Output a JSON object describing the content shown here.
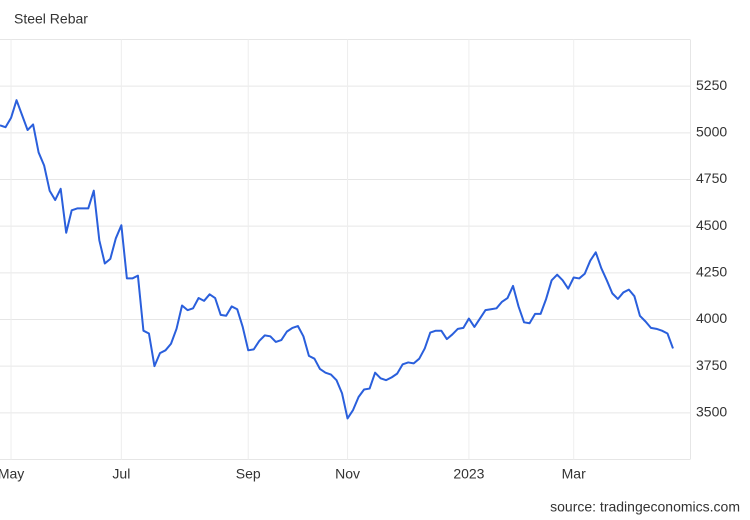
{
  "chart_data": {
    "type": "line",
    "title": "Steel Rebar",
    "source": "source: tradingeconomics.com",
    "categories": [
      null,
      null,
      "May",
      null,
      null,
      null,
      null,
      null,
      null,
      null,
      null,
      null,
      null,
      null,
      null,
      null,
      null,
      null,
      null,
      null,
      null,
      null,
      "Jul",
      null,
      null,
      null,
      null,
      null,
      null,
      null,
      null,
      null,
      null,
      null,
      null,
      null,
      null,
      null,
      null,
      null,
      null,
      null,
      null,
      null,
      null,
      "Sep",
      null,
      null,
      null,
      null,
      null,
      null,
      null,
      null,
      null,
      null,
      null,
      null,
      null,
      null,
      null,
      null,
      null,
      "Nov",
      null,
      null,
      null,
      null,
      null,
      null,
      null,
      null,
      null,
      null,
      null,
      null,
      null,
      null,
      null,
      null,
      null,
      null,
      null,
      null,
      null,
      "2023",
      null,
      null,
      null,
      null,
      null,
      null,
      null,
      null,
      null,
      null,
      null,
      null,
      null,
      null,
      null,
      null,
      null,
      null,
      "Mar",
      null,
      null,
      null,
      null,
      null,
      null,
      null,
      null,
      null,
      null,
      null,
      null,
      null,
      null,
      null,
      null,
      null,
      null
    ],
    "values": [
      5040,
      5030,
      5080,
      5175,
      5095,
      5015,
      5045,
      4895,
      4825,
      4690,
      4640,
      4700,
      4465,
      4585,
      4595,
      4595,
      4595,
      4690,
      4425,
      4300,
      4325,
      4435,
      4505,
      4220,
      4220,
      4235,
      3940,
      3925,
      3750,
      3820,
      3835,
      3870,
      3950,
      4075,
      4050,
      4060,
      4115,
      4100,
      4135,
      4115,
      4025,
      4020,
      4070,
      4055,
      3960,
      3835,
      3840,
      3885,
      3915,
      3910,
      3880,
      3890,
      3935,
      3955,
      3965,
      3910,
      3805,
      3790,
      3735,
      3715,
      3705,
      3675,
      3605,
      3470,
      3515,
      3585,
      3625,
      3630,
      3715,
      3685,
      3675,
      3690,
      3710,
      3760,
      3770,
      3765,
      3790,
      3845,
      3930,
      3940,
      3940,
      3895,
      3920,
      3950,
      3955,
      4005,
      3960,
      4005,
      4050,
      4055,
      4060,
      4095,
      4115,
      4180,
      4070,
      3985,
      3980,
      4030,
      4030,
      4110,
      4210,
      4240,
      4210,
      4165,
      4225,
      4220,
      4245,
      4315,
      4360,
      4275,
      4210,
      4140,
      4110,
      4145,
      4160,
      4125,
      4020,
      3990,
      3955,
      3950,
      3940,
      3925,
      3845
    ],
    "color": "#2a5fdc",
    "ylim": [
      3250,
      5500
    ],
    "yticks": [
      3500,
      3750,
      4000,
      4250,
      4500,
      4750,
      5000,
      5250
    ],
    "grid": true
  }
}
